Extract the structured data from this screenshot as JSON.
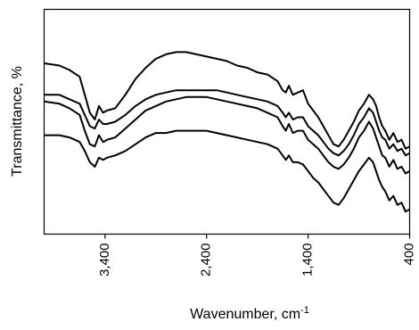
{
  "chart_data": {
    "type": "line",
    "xlabel": "Wavenumber, cm",
    "xlabel_superscript": "-1",
    "ylabel": "Transmittance, %",
    "x_reversed": true,
    "xlim": [
      4000,
      400
    ],
    "ylim": [
      0,
      100
    ],
    "x_ticks": [
      {
        "value": 3400,
        "label": "3,400"
      },
      {
        "value": 2400,
        "label": "2,400"
      },
      {
        "value": 1400,
        "label": "1,400"
      },
      {
        "value": 400,
        "label": "400"
      }
    ],
    "y_ticks": [],
    "grid": false,
    "line_color": "#000000",
    "series": [
      {
        "x": [
          4000,
          3850,
          3750,
          3650,
          3600,
          3550,
          3500,
          3460,
          3420,
          3380,
          3300,
          3200,
          3100,
          3000,
          2900,
          2800,
          2700,
          2600,
          2500,
          2400,
          2300,
          2200,
          2100,
          2000,
          1900,
          1800,
          1700,
          1650,
          1620,
          1590,
          1550,
          1500,
          1450,
          1400,
          1350,
          1300,
          1250,
          1200,
          1150,
          1100,
          1050,
          1000,
          950,
          900,
          850,
          800,
          760,
          730,
          700,
          670,
          640,
          600,
          560,
          520,
          480,
          440,
          400
        ],
        "y": [
          76,
          75,
          73,
          70,
          62,
          54,
          51,
          57,
          54,
          55,
          56,
          62,
          69,
          74,
          78,
          80,
          81,
          81,
          80,
          79,
          78,
          77,
          75,
          74,
          72,
          71,
          68,
          64,
          63,
          66,
          62,
          63,
          64,
          58,
          55,
          52,
          48,
          44,
          40,
          39,
          42,
          46,
          50,
          55,
          58,
          62,
          60,
          57,
          52,
          48,
          46,
          42,
          45,
          41,
          42,
          38,
          39
        ]
      },
      {
        "x": [
          4000,
          3850,
          3750,
          3650,
          3600,
          3550,
          3500,
          3460,
          3420,
          3380,
          3300,
          3200,
          3100,
          3000,
          2900,
          2800,
          2700,
          2600,
          2500,
          2400,
          2300,
          2200,
          2100,
          2000,
          1900,
          1800,
          1700,
          1650,
          1620,
          1590,
          1550,
          1500,
          1450,
          1400,
          1350,
          1300,
          1250,
          1200,
          1150,
          1100,
          1050,
          1000,
          950,
          900,
          850,
          800,
          760,
          730,
          700,
          670,
          640,
          600,
          560,
          520,
          480,
          440,
          400
        ],
        "y": [
          62,
          62,
          60,
          58,
          53,
          48,
          47,
          51,
          49,
          49,
          50,
          53,
          57,
          60,
          62,
          63,
          64,
          64,
          64,
          64,
          64,
          63,
          62,
          61,
          60,
          59,
          57,
          54,
          52,
          54,
          51,
          52,
          52,
          48,
          46,
          44,
          41,
          38,
          36,
          35,
          37,
          40,
          44,
          49,
          52,
          56,
          54,
          50,
          46,
          43,
          42,
          38,
          40,
          37,
          38,
          35,
          36
        ]
      },
      {
        "x": [
          4000,
          3850,
          3750,
          3650,
          3600,
          3550,
          3500,
          3460,
          3420,
          3380,
          3300,
          3200,
          3100,
          3000,
          2900,
          2800,
          2700,
          2600,
          2500,
          2400,
          2300,
          2200,
          2100,
          2000,
          1900,
          1800,
          1700,
          1650,
          1620,
          1590,
          1550,
          1500,
          1450,
          1400,
          1350,
          1300,
          1250,
          1200,
          1150,
          1100,
          1050,
          1000,
          950,
          900,
          850,
          800,
          760,
          730,
          700,
          670,
          640,
          600,
          560,
          520,
          480,
          440,
          400
        ],
        "y": [
          59,
          58,
          56,
          53,
          46,
          40,
          39,
          44,
          41,
          42,
          43,
          47,
          51,
          55,
          57,
          59,
          60,
          61,
          61,
          61,
          60,
          59,
          58,
          57,
          56,
          54,
          52,
          48,
          46,
          49,
          45,
          46,
          46,
          42,
          40,
          38,
          35,
          32,
          30,
          29,
          31,
          34,
          38,
          43,
          46,
          50,
          47,
          43,
          39,
          35,
          34,
          30,
          33,
          29,
          30,
          27,
          28
        ]
      },
      {
        "x": [
          4000,
          3850,
          3750,
          3650,
          3600,
          3550,
          3500,
          3460,
          3420,
          3380,
          3300,
          3200,
          3100,
          3000,
          2900,
          2800,
          2700,
          2600,
          2500,
          2400,
          2300,
          2200,
          2100,
          2000,
          1900,
          1800,
          1700,
          1650,
          1620,
          1590,
          1550,
          1500,
          1450,
          1400,
          1350,
          1300,
          1250,
          1200,
          1150,
          1100,
          1050,
          1000,
          950,
          900,
          850,
          800,
          760,
          730,
          700,
          670,
          640,
          600,
          560,
          520,
          480,
          440,
          400
        ],
        "y": [
          44,
          44,
          43,
          41,
          37,
          32,
          30,
          34,
          33,
          34,
          35,
          37,
          40,
          43,
          45,
          45,
          46,
          46,
          46,
          46,
          45,
          44,
          43,
          42,
          41,
          40,
          38,
          35,
          33,
          35,
          32,
          32,
          31,
          28,
          25,
          23,
          20,
          17,
          14,
          13,
          16,
          20,
          24,
          28,
          31,
          34,
          32,
          28,
          24,
          21,
          19,
          15,
          17,
          13,
          14,
          10,
          11
        ]
      }
    ]
  }
}
